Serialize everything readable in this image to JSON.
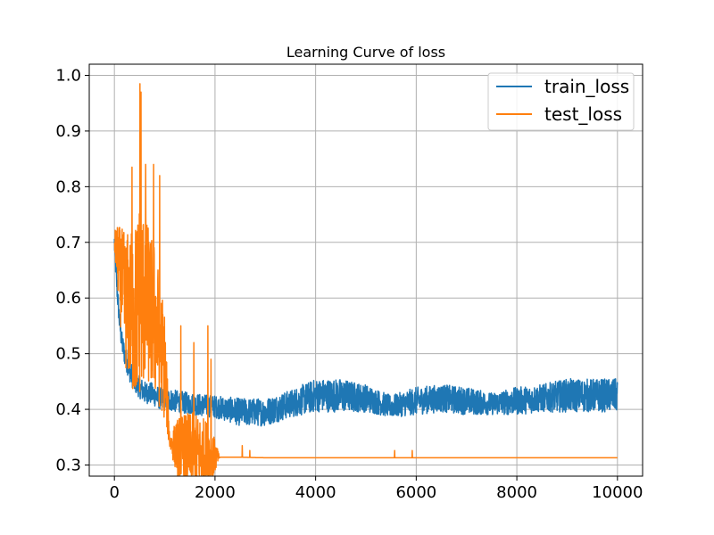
{
  "chart_data": {
    "type": "line",
    "title": "Learning Curve of loss",
    "xlabel": "",
    "ylabel": "",
    "xlim": [
      -500,
      10500
    ],
    "ylim": [
      0.28,
      1.02
    ],
    "xticks": [
      0,
      2000,
      4000,
      6000,
      8000,
      10000
    ],
    "xtick_labels": [
      "0",
      "2000",
      "4000",
      "6000",
      "8000",
      "10000"
    ],
    "yticks": [
      0.3,
      0.4,
      0.5,
      0.6,
      0.7,
      0.8,
      0.9,
      1.0
    ],
    "ytick_labels": [
      "0.3",
      "0.4",
      "0.5",
      "0.6",
      "0.7",
      "0.8",
      "0.9",
      "1.0"
    ],
    "grid": true,
    "legend_position": "top-right",
    "series": [
      {
        "name": "train_loss",
        "color": "#1f77b4",
        "x": [
          0,
          50,
          100,
          150,
          200,
          300,
          400,
          500,
          600,
          700,
          800,
          900,
          1000,
          1200,
          1500,
          2000,
          2500,
          3000,
          3500,
          4000,
          4500,
          5000,
          5500,
          6000,
          6500,
          7000,
          7500,
          8000,
          8500,
          9000,
          9500,
          10000
        ],
        "y": [
          0.7,
          0.62,
          0.56,
          0.52,
          0.5,
          0.47,
          0.45,
          0.44,
          0.43,
          0.43,
          0.425,
          0.42,
          0.42,
          0.415,
          0.41,
          0.405,
          0.395,
          0.395,
          0.41,
          0.425,
          0.425,
          0.42,
          0.405,
          0.415,
          0.42,
          0.415,
          0.41,
          0.415,
          0.42,
          0.425,
          0.425,
          0.425
        ],
        "noise": [
          0.02,
          0.02,
          0.02,
          0.02,
          0.02,
          0.02,
          0.02,
          0.02,
          0.02,
          0.02,
          0.02,
          0.02,
          0.02,
          0.02,
          0.02,
          0.02,
          0.025,
          0.025,
          0.025,
          0.03,
          0.03,
          0.025,
          0.02,
          0.025,
          0.025,
          0.025,
          0.02,
          0.025,
          0.025,
          0.03,
          0.03,
          0.03
        ]
      },
      {
        "name": "test_loss",
        "color": "#ff7f0e",
        "x": [
          0,
          50,
          100,
          200,
          300,
          400,
          500,
          600,
          700,
          800,
          900,
          1000,
          1100,
          1200,
          1300,
          1500,
          1700,
          1900,
          2000,
          2100,
          2500,
          3000,
          4000,
          5000,
          6000,
          7000,
          8000,
          9000,
          10000
        ],
        "y": [
          0.7,
          0.68,
          0.65,
          0.6,
          0.58,
          0.57,
          0.6,
          0.6,
          0.58,
          0.56,
          0.52,
          0.48,
          0.34,
          0.335,
          0.33,
          0.325,
          0.32,
          0.318,
          0.315,
          0.314,
          0.314,
          0.313,
          0.313,
          0.313,
          0.313,
          0.313,
          0.313,
          0.313,
          0.313
        ],
        "noise": [
          0.02,
          0.05,
          0.08,
          0.12,
          0.14,
          0.16,
          0.18,
          0.16,
          0.14,
          0.14,
          0.12,
          0.1,
          0.01,
          0.04,
          0.06,
          0.07,
          0.07,
          0.06,
          0.03,
          0.0,
          0.0,
          0.0,
          0.0,
          0.0,
          0.0,
          0.0,
          0.0,
          0.0,
          0.0
        ],
        "spikes": [
          {
            "x": 510,
            "y": 0.985
          },
          {
            "x": 530,
            "y": 0.97
          },
          {
            "x": 350,
            "y": 0.835
          },
          {
            "x": 620,
            "y": 0.84
          },
          {
            "x": 780,
            "y": 0.84
          },
          {
            "x": 900,
            "y": 0.82
          },
          {
            "x": 1320,
            "y": 0.55
          },
          {
            "x": 1580,
            "y": 0.52
          },
          {
            "x": 1860,
            "y": 0.55
          },
          {
            "x": 1920,
            "y": 0.49
          },
          {
            "x": 2540,
            "y": 0.335
          },
          {
            "x": 2690,
            "y": 0.326
          },
          {
            "x": 5570,
            "y": 0.326
          },
          {
            "x": 5920,
            "y": 0.326
          }
        ]
      }
    ]
  }
}
